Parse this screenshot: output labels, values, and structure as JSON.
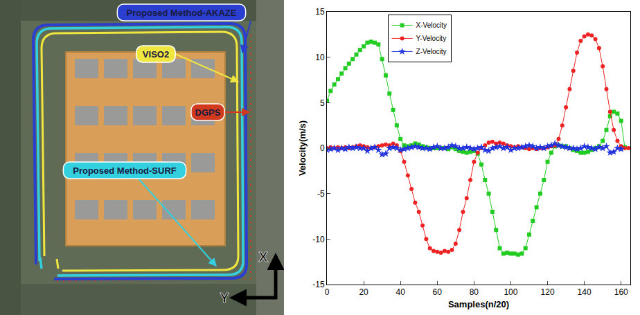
{
  "chart_data": {
    "type": "line",
    "x_label": "Samples(n/20)",
    "y_label": "Velocity(m/s)",
    "xlim": [
      0,
      165
    ],
    "xticks": [
      0,
      20,
      40,
      60,
      80,
      100,
      120,
      140,
      160
    ],
    "ylim": [
      -15,
      15
    ],
    "yticks": [
      -15,
      -10,
      -5,
      0,
      5,
      10,
      15
    ],
    "grid": false,
    "legend": "top",
    "x": [
      0,
      2,
      4,
      6,
      8,
      10,
      12,
      14,
      16,
      18,
      20,
      22,
      24,
      26,
      28,
      30,
      32,
      34,
      36,
      38,
      40,
      42,
      44,
      46,
      48,
      50,
      52,
      54,
      56,
      58,
      60,
      62,
      64,
      66,
      68,
      70,
      72,
      74,
      76,
      78,
      80,
      82,
      84,
      86,
      88,
      90,
      92,
      94,
      96,
      98,
      100,
      102,
      104,
      106,
      108,
      110,
      112,
      114,
      116,
      118,
      120,
      122,
      124,
      126,
      128,
      130,
      132,
      134,
      136,
      138,
      140,
      142,
      144,
      146,
      148,
      150,
      152,
      154,
      156,
      158,
      160,
      162,
      164
    ],
    "series": [
      {
        "name": "X-Velocity",
        "color": "#22cc22",
        "marker": "square",
        "line_style": "solid",
        "values": [
          5.2,
          6.3,
          7.0,
          7.6,
          8.2,
          8.8,
          9.3,
          9.8,
          10.3,
          10.8,
          11.2,
          11.6,
          11.7,
          11.6,
          11.4,
          9.8,
          8.0,
          6.0,
          4.2,
          2.5,
          1.0,
          0.3,
          0.2,
          0.3,
          0.5,
          0.4,
          0.2,
          0.1,
          0,
          0,
          0,
          0,
          0,
          -0.1,
          0.1,
          -0.1,
          -0.3,
          -0.4,
          -0.5,
          -0.4,
          -0.3,
          -0.6,
          -1.8,
          -3.5,
          -5.0,
          -7.0,
          -9.0,
          -11.0,
          -11.6,
          -11.5,
          -11.6,
          -11.6,
          -11.7,
          -11.6,
          -11.0,
          -9.5,
          -8.0,
          -6.5,
          -5.0,
          -3.5,
          -1.5,
          -0.5,
          0.2,
          0.3,
          0.2,
          0.2,
          0,
          -0.2,
          -0.3,
          -0.5,
          -0.5,
          -0.4,
          -0.2,
          0,
          0.2,
          0.8,
          2.0,
          3.5,
          4.0,
          3.8,
          3.0,
          0.1,
          null
        ]
      },
      {
        "name": "Y-Velocity",
        "color": "#ee2222",
        "marker": "circle",
        "line_style": "solid",
        "values": [
          0,
          0.1,
          0,
          0.1,
          0,
          0.1,
          0,
          0.1,
          0.2,
          0.3,
          0.2,
          0.1,
          0,
          0.1,
          0.2,
          0.3,
          0.4,
          0.3,
          0.5,
          0.3,
          -0.3,
          -1.5,
          -3.0,
          -4.5,
          -6.0,
          -7.0,
          -8.5,
          -10.0,
          -11.0,
          -11.3,
          -11.4,
          -11.5,
          -11.3,
          -11.4,
          -11.2,
          -10.5,
          -9.0,
          -7.0,
          -5.5,
          -3.5,
          -1.5,
          -0.5,
          0,
          0.3,
          0.6,
          0.7,
          0.5,
          0.6,
          0.5,
          0.3,
          0.2,
          0.1,
          0.2,
          0.1,
          0,
          -0.1,
          0,
          -0.1,
          0,
          0,
          0.1,
          0.2,
          0.3,
          1.0,
          2.5,
          4.5,
          6.5,
          8.5,
          10.5,
          11.8,
          12.3,
          12.5,
          12.4,
          12.0,
          11.0,
          9.0,
          6.5,
          4.0,
          2.0,
          0.8,
          0.2,
          0,
          0
        ]
      },
      {
        "name": "Z-Velocity",
        "color": "#2233dd",
        "marker": "star",
        "line_style": "solid",
        "values": [
          -0.2,
          -0.1,
          0,
          -0.2,
          0,
          -0.1,
          0.1,
          0,
          0.1,
          0,
          0,
          -0.3,
          0,
          0.1,
          -0.2,
          -0.7,
          -0.6,
          0,
          0.1,
          0,
          -0.2,
          -0.1,
          0,
          0.1,
          0.2,
          0.1,
          0,
          0,
          -0.1,
          0.1,
          0.2,
          0,
          0,
          0.1,
          0.3,
          0.2,
          0,
          0,
          0.1,
          0,
          -0.1,
          0,
          0.1,
          -0.2,
          -0.3,
          0,
          0.1,
          0.2,
          0,
          0.1,
          -0.2,
          0,
          0,
          0.1,
          0.2,
          0.3,
          0.2,
          0,
          0.1,
          0,
          0.2,
          0.3,
          0.5,
          0.3,
          0.2,
          0.1,
          0,
          0,
          -0.1,
          0,
          0.2,
          0.1,
          0,
          -0.1,
          0.1,
          0,
          0.2,
          -0.5,
          -0.4,
          0,
          -0.1,
          null,
          null
        ]
      }
    ]
  },
  "map_panel": {
    "labels": [
      {
        "text": "Proposed Method-AKAZE",
        "color": "#2a3fd0"
      },
      {
        "text": "VISO2",
        "color": "#f0e640"
      },
      {
        "text": "DGPS",
        "color": "#d23a1e"
      },
      {
        "text": "Proposed Method-SURF",
        "color": "#33d0e0"
      }
    ],
    "axes": {
      "x": "X",
      "y": "Y"
    }
  }
}
